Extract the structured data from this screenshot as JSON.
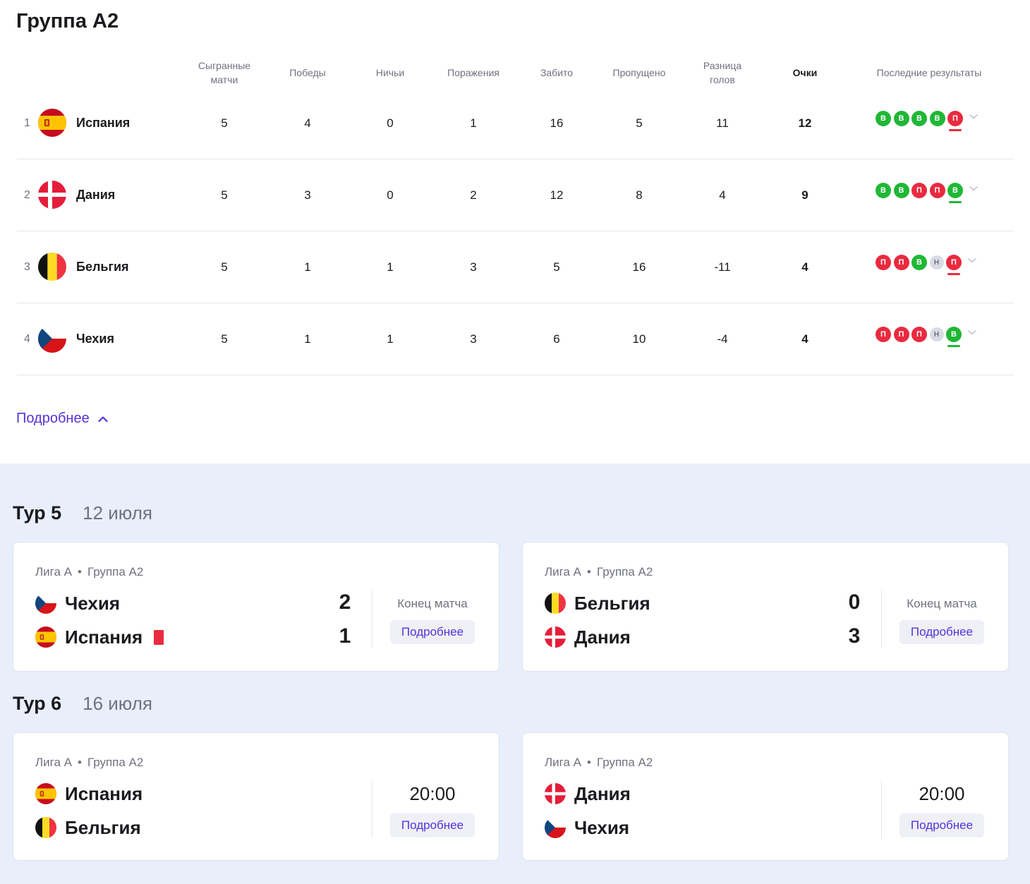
{
  "group_title": "Группа A2",
  "headers": {
    "played": "Сыгранные\nматчи",
    "wins": "Победы",
    "draws": "Ничьи",
    "losses": "Поражения",
    "scored": "Забито",
    "conceded": "Пропущено",
    "diff": "Разница\nголов",
    "points": "Очки",
    "form": "Последние результаты"
  },
  "standings": [
    {
      "pos": "1",
      "team": "Испания",
      "flag": "spain",
      "played": "5",
      "wins": "4",
      "draws": "0",
      "losses": "1",
      "scored": "16",
      "conceded": "5",
      "diff": "11",
      "points": "12",
      "form": [
        {
          "r": "В",
          "t": "w"
        },
        {
          "r": "В",
          "t": "w"
        },
        {
          "r": "В",
          "t": "w"
        },
        {
          "r": "В",
          "t": "w"
        },
        {
          "r": "П",
          "t": "l",
          "cur": true
        }
      ]
    },
    {
      "pos": "2",
      "team": "Дания",
      "flag": "denmark",
      "played": "5",
      "wins": "3",
      "draws": "0",
      "losses": "2",
      "scored": "12",
      "conceded": "8",
      "diff": "4",
      "points": "9",
      "form": [
        {
          "r": "В",
          "t": "w"
        },
        {
          "r": "В",
          "t": "w"
        },
        {
          "r": "П",
          "t": "l"
        },
        {
          "r": "П",
          "t": "l"
        },
        {
          "r": "В",
          "t": "w",
          "cur": true
        }
      ]
    },
    {
      "pos": "3",
      "team": "Бельгия",
      "flag": "belgium",
      "played": "5",
      "wins": "1",
      "draws": "1",
      "losses": "3",
      "scored": "5",
      "conceded": "16",
      "diff": "-11",
      "points": "4",
      "form": [
        {
          "r": "П",
          "t": "l"
        },
        {
          "r": "П",
          "t": "l"
        },
        {
          "r": "В",
          "t": "w"
        },
        {
          "r": "Н",
          "t": "d"
        },
        {
          "r": "П",
          "t": "l",
          "cur": true
        }
      ]
    },
    {
      "pos": "4",
      "team": "Чехия",
      "flag": "czech",
      "played": "5",
      "wins": "1",
      "draws": "1",
      "losses": "3",
      "scored": "6",
      "conceded": "10",
      "diff": "-4",
      "points": "4",
      "form": [
        {
          "r": "П",
          "t": "l"
        },
        {
          "r": "П",
          "t": "l"
        },
        {
          "r": "П",
          "t": "l"
        },
        {
          "r": "Н",
          "t": "d"
        },
        {
          "r": "В",
          "t": "w",
          "cur": true
        }
      ]
    }
  ],
  "more_label": "Подробнее",
  "rounds": [
    {
      "title": "Тур 5",
      "date": "12 июля",
      "matches": [
        {
          "league": "Лига A",
          "group": "Группа A2",
          "home": "Чехия",
          "home_flag": "czech",
          "away": "Испания",
          "away_flag": "spain",
          "home_score": "2",
          "away_score": "1",
          "away_red_card": true,
          "status": "Конец матча",
          "button": "Подробнее"
        },
        {
          "league": "Лига A",
          "group": "Группа A2",
          "home": "Бельгия",
          "home_flag": "belgium",
          "away": "Дания",
          "away_flag": "denmark",
          "home_score": "0",
          "away_score": "3",
          "status": "Конец матча",
          "button": "Подробнее"
        }
      ]
    },
    {
      "title": "Тур 6",
      "date": "16 июля",
      "matches": [
        {
          "league": "Лига A",
          "group": "Группа A2",
          "home": "Испания",
          "home_flag": "spain",
          "away": "Бельгия",
          "away_flag": "belgium",
          "time": "20:00",
          "button": "Подробнее"
        },
        {
          "league": "Лига A",
          "group": "Группа A2",
          "home": "Дания",
          "home_flag": "denmark",
          "away": "Чехия",
          "away_flag": "czech",
          "time": "20:00",
          "button": "Подробнее"
        }
      ]
    }
  ],
  "colors": {
    "win": "#20b736",
    "loss": "#ea2a3f",
    "draw": "#d9dbe4",
    "accent": "#5532db",
    "rounds_bg": "#e8eefa"
  }
}
